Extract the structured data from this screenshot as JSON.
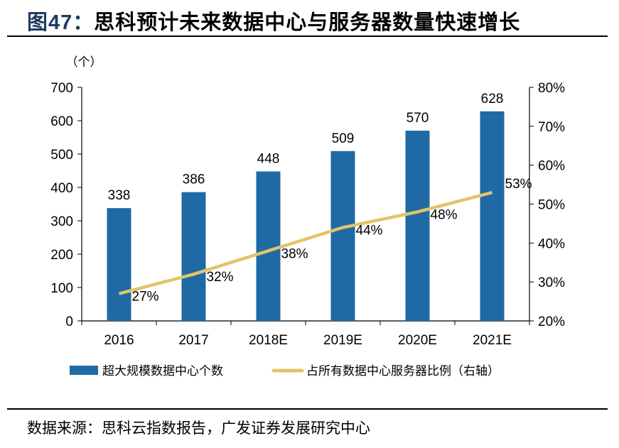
{
  "title": {
    "prefix": "图47：",
    "text": "思科预计未来数据中心与服务器数量快速增长"
  },
  "source": "数据来源：思科云指数报告，广发证券发展研究中心",
  "chart_data": {
    "type": "bar+line",
    "categories": [
      "2016",
      "2017",
      "2018E",
      "2019E",
      "2020E",
      "2021E"
    ],
    "y_unit_label": "（个）",
    "ylim": [
      0,
      700
    ],
    "yticks": [
      0,
      100,
      200,
      300,
      400,
      500,
      600,
      700
    ],
    "y2lim": [
      20,
      80
    ],
    "y2ticks": [
      "20%",
      "30%",
      "40%",
      "50%",
      "60%",
      "70%",
      "80%"
    ],
    "grid": false,
    "legend_position": "bottom",
    "series": [
      {
        "name": "超大规模数据中心个数",
        "type": "bar",
        "axis": "left",
        "color": "#1f6aa5",
        "values": [
          338,
          386,
          448,
          509,
          570,
          628
        ],
        "labels": [
          "338",
          "386",
          "448",
          "509",
          "570",
          "628"
        ]
      },
      {
        "name": "占所有数据中心服务器比例（右轴）",
        "type": "line",
        "axis": "right",
        "color": "#e2c468",
        "values": [
          27,
          32,
          38,
          44,
          48,
          53
        ],
        "labels": [
          "27%",
          "32%",
          "38%",
          "44%",
          "48%",
          "53%"
        ]
      }
    ]
  }
}
